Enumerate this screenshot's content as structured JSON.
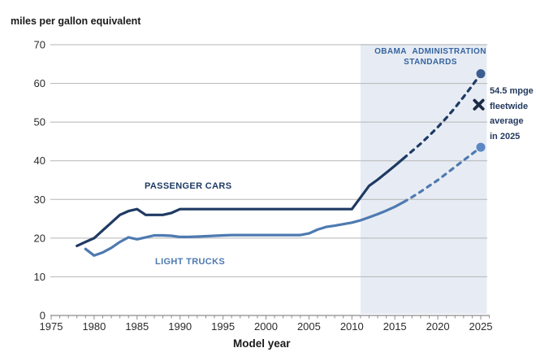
{
  "chart_data": {
    "type": "line",
    "title": "miles per gallon equivalent",
    "xlabel": "Model year",
    "ylim": [
      0,
      70
    ],
    "xlim": [
      1975,
      2026
    ],
    "y_ticks": [
      0,
      10,
      20,
      30,
      40,
      50,
      60,
      70
    ],
    "x_ticks": [
      1975,
      1980,
      1985,
      1990,
      1995,
      2000,
      2005,
      2010,
      2015,
      2020,
      2025
    ],
    "grid": "horizontal",
    "legend_position": "inline-labels",
    "gridline_color": "#b5b5b5",
    "axis_color": "#8c8c8c",
    "tick_label_color": "#2b2b2b",
    "band": {
      "from": 2011,
      "to": 2025.7,
      "fill": "#e7ecf4",
      "label_lines": [
        "OBAMA ADMINISTRATION",
        "STANDARDS"
      ],
      "label_color": "#35639f"
    },
    "series": [
      {
        "name": "PASSENGER CARS",
        "style": "solid",
        "color": "#1f3a63",
        "points": [
          [
            1978,
            18
          ],
          [
            1979,
            19
          ],
          [
            1980,
            20
          ],
          [
            1981,
            22
          ],
          [
            1982,
            24
          ],
          [
            1983,
            26
          ],
          [
            1984,
            27
          ],
          [
            1985,
            27.5
          ],
          [
            1986,
            26
          ],
          [
            1987,
            26
          ],
          [
            1988,
            26
          ],
          [
            1989,
            26.5
          ],
          [
            1990,
            27.5
          ],
          [
            1995,
            27.5
          ],
          [
            2000,
            27.5
          ],
          [
            2005,
            27.5
          ],
          [
            2010,
            27.5
          ],
          [
            2011,
            30.5
          ],
          [
            2012,
            33.5
          ],
          [
            2013,
            35.1
          ],
          [
            2014,
            36.9
          ],
          [
            2015,
            38.7
          ],
          [
            2016,
            40.6
          ]
        ]
      },
      {
        "name": "PASSENGER CARS (projected)",
        "style": "dashed",
        "color": "#1f3a63",
        "marker_color": "#3c5d92",
        "end_marker": "dot",
        "points": [
          [
            2016,
            40.6
          ],
          [
            2017,
            42.5
          ],
          [
            2018,
            44.4
          ],
          [
            2019,
            46.5
          ],
          [
            2020,
            48.7
          ],
          [
            2021,
            51.1
          ],
          [
            2022,
            53.7
          ],
          [
            2023,
            56.5
          ],
          [
            2024,
            59.4
          ],
          [
            2025,
            62.5
          ]
        ]
      },
      {
        "name": "LIGHT TRUCKS",
        "style": "solid",
        "color": "#4e7ab1",
        "points": [
          [
            1979,
            17.2
          ],
          [
            1980,
            15.5
          ],
          [
            1981,
            16.3
          ],
          [
            1982,
            17.5
          ],
          [
            1983,
            19
          ],
          [
            1984,
            20.2
          ],
          [
            1985,
            19.7
          ],
          [
            1986,
            20.2
          ],
          [
            1987,
            20.7
          ],
          [
            1988,
            20.7
          ],
          [
            1989,
            20.6
          ],
          [
            1990,
            20.3
          ],
          [
            1991,
            20.3
          ],
          [
            1992,
            20.4
          ],
          [
            1993,
            20.5
          ],
          [
            1994,
            20.6
          ],
          [
            1995,
            20.7
          ],
          [
            1996,
            20.8
          ],
          [
            2004,
            20.8
          ],
          [
            2005,
            21.2
          ],
          [
            2006,
            22.2
          ],
          [
            2007,
            22.9
          ],
          [
            2008,
            23.2
          ],
          [
            2009,
            23.6
          ],
          [
            2010,
            24
          ],
          [
            2011,
            24.6
          ],
          [
            2012,
            25.4
          ],
          [
            2013,
            26.2
          ],
          [
            2014,
            27.1
          ],
          [
            2015,
            28.1
          ],
          [
            2016,
            29.3
          ]
        ]
      },
      {
        "name": "LIGHT TRUCKS (projected)",
        "style": "dashed",
        "color": "#4e7ab1",
        "marker_color": "#5b87c4",
        "end_marker": "dot",
        "points": [
          [
            2016,
            29.3
          ],
          [
            2017,
            30.6
          ],
          [
            2018,
            32
          ],
          [
            2019,
            33.5
          ],
          [
            2020,
            35
          ],
          [
            2021,
            36.7
          ],
          [
            2022,
            38.4
          ],
          [
            2023,
            40.1
          ],
          [
            2024,
            41.8
          ],
          [
            2025,
            43.5
          ]
        ]
      }
    ],
    "annotation": {
      "marker": "x",
      "marker_color": "#1c2b45",
      "x": 2025,
      "y": 54.5,
      "lines": [
        "54.5 mpge",
        "fleetwide",
        "average",
        "in 2025"
      ],
      "color": "#243a5e"
    }
  }
}
